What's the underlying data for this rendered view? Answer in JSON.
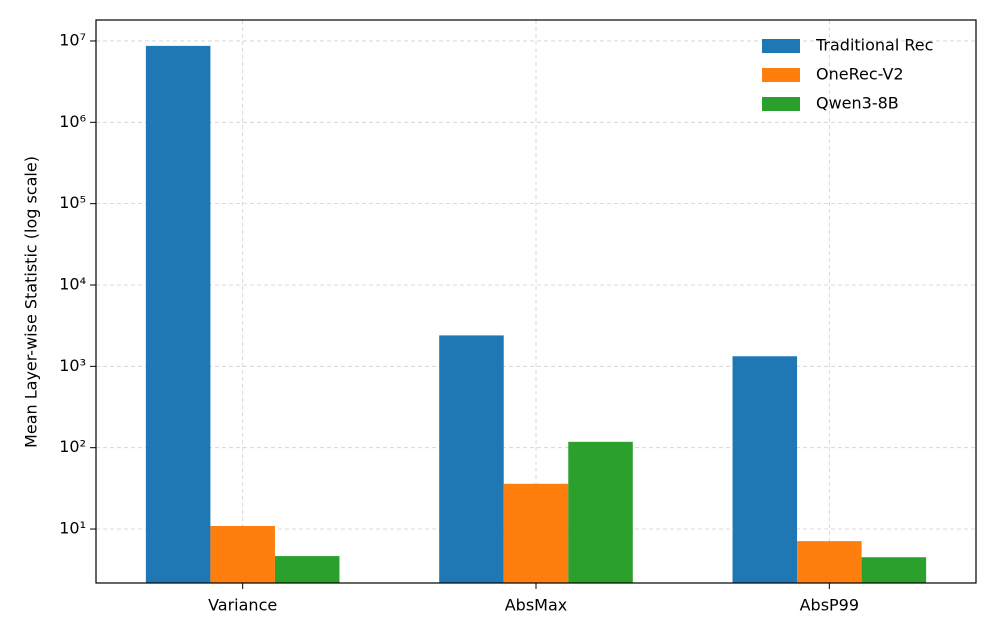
{
  "chart_data": {
    "type": "bar",
    "y_label": "Mean Layer-wise Statistic (log scale)",
    "categories": [
      "Variance",
      "AbsMax",
      "AbsP99"
    ],
    "series": [
      {
        "name": "Traditional Rec",
        "color": "#1f77b4",
        "values": [
          8700000,
          2400,
          1330
        ]
      },
      {
        "name": "OneRec-V2",
        "color": "#ff7f0e",
        "values": [
          10.9,
          36,
          7.1
        ]
      },
      {
        "name": "Qwen3-8B",
        "color": "#2ca02c",
        "values": [
          4.65,
          118,
          4.5
        ]
      }
    ],
    "log_scale": true,
    "ylim": [
      2.17,
      18100000
    ],
    "yticks": [
      {
        "value": 10,
        "label": "10¹"
      },
      {
        "value": 100,
        "label": "10²"
      },
      {
        "value": 1000,
        "label": "10³"
      },
      {
        "value": 10000,
        "label": "10⁴"
      },
      {
        "value": 100000,
        "label": "10⁵"
      },
      {
        "value": 1000000,
        "label": "10⁶"
      },
      {
        "value": 10000000,
        "label": "10⁷"
      }
    ],
    "grid": true,
    "legend": "upper right"
  }
}
